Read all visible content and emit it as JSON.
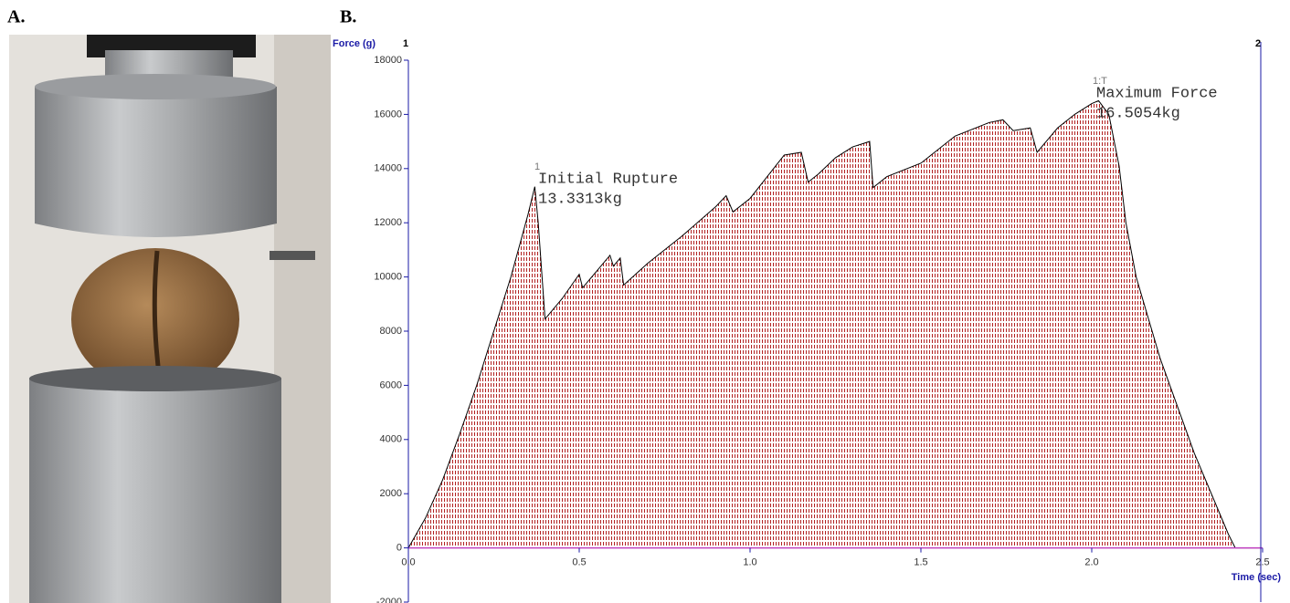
{
  "panel_labels": [
    "A.",
    "B."
  ],
  "chart_data": {
    "type": "area",
    "y_label": "Force (g)",
    "x_label": "Time (sec)",
    "cursor_labels": [
      "1",
      "2"
    ],
    "annotations": [
      {
        "marker": "1",
        "lines": [
          "Initial Rupture",
          "13.3313kg"
        ]
      },
      {
        "marker": "1:T",
        "lines": [
          "Maximum Force",
          "16.5054kg"
        ]
      }
    ],
    "x": [
      0,
      0.05,
      0.1,
      0.15,
      0.2,
      0.25,
      0.3,
      0.35,
      0.37,
      0.38,
      0.4,
      0.45,
      0.5,
      0.51,
      0.55,
      0.59,
      0.6,
      0.62,
      0.63,
      0.7,
      0.8,
      0.9,
      0.93,
      0.95,
      1.0,
      1.05,
      1.1,
      1.15,
      1.17,
      1.2,
      1.25,
      1.3,
      1.35,
      1.36,
      1.4,
      1.5,
      1.6,
      1.7,
      1.74,
      1.77,
      1.82,
      1.84,
      1.9,
      1.95,
      2.0,
      2.02,
      2.05,
      2.08,
      2.1,
      2.13,
      2.2,
      2.3,
      2.4,
      2.42,
      2.5
    ],
    "values": [
      0,
      1100,
      2500,
      4200,
      6000,
      8000,
      10000,
      12300,
      13331,
      12000,
      8450,
      9200,
      10100,
      9600,
      10200,
      10800,
      10400,
      10700,
      9700,
      10500,
      11500,
      12600,
      13000,
      12400,
      12900,
      13700,
      14500,
      14600,
      13500,
      13800,
      14400,
      14800,
      15000,
      13300,
      13700,
      14200,
      15200,
      15700,
      15800,
      15400,
      15500,
      14600,
      15500,
      16000,
      16400,
      16505,
      16000,
      14100,
      12000,
      10000,
      7000,
      3500,
      500,
      0,
      0
    ],
    "color": "#b22222",
    "line_color": "#000000",
    "axis_color": "#1a1aa6",
    "xlim": [
      0,
      2.5
    ],
    "ylim": [
      -2000,
      18000
    ],
    "xticks": [
      {
        "value": 0,
        "label": "0.0"
      },
      0.5,
      {
        "value": 1,
        "label": "1.0"
      },
      1.5,
      {
        "value": 2,
        "label": "2.0"
      },
      2.5
    ],
    "yticks": [
      -2000,
      0,
      2000,
      4000,
      6000,
      8000,
      10000,
      12000,
      14000,
      16000,
      18000
    ],
    "grid": false
  }
}
